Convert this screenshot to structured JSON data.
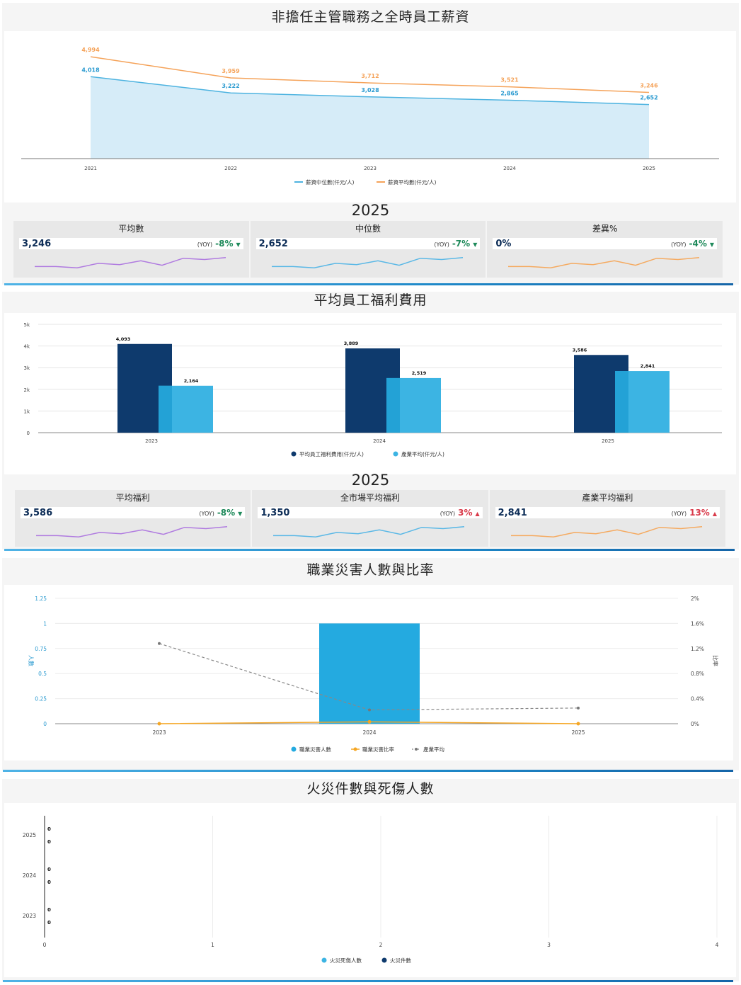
{
  "colors": {
    "median_line": "#4db3e0",
    "mean_line": "#f5a35a",
    "avg_welfare_bar": "#0e3a6d",
    "industry_bar": "#3cb4e3",
    "accident_bar": "#24aae0",
    "accident_rate": "#f5a623",
    "industry_avg": "#888888",
    "spark_purple": "#b07be0",
    "spark_blue": "#5ab8e6",
    "spark_orange": "#f5aa60",
    "yoy_down": "#1f8a5b",
    "yoy_up": "#d93a4a"
  },
  "salary": {
    "title": "非擔任主管職務之全時員工薪資",
    "year_heading": "2025",
    "kpis": [
      {
        "title": "平均數",
        "value": "3,246",
        "yoy_tag": "(YOY)",
        "yoy": "-8%",
        "dir": "down",
        "arrow": "▼",
        "spark_color": "purple"
      },
      {
        "title": "中位數",
        "value": "2,652",
        "yoy_tag": "(YOY)",
        "yoy": "-7%",
        "dir": "down",
        "arrow": "▼",
        "spark_color": "blue"
      },
      {
        "title": "差異%",
        "value": "0%",
        "yoy_tag": "(YOY)",
        "yoy": "-4%",
        "dir": "down",
        "arrow": "▼",
        "spark_color": "orange"
      }
    ]
  },
  "welfare": {
    "title": "平均員工福利費用",
    "year_heading": "2025",
    "kpis": [
      {
        "title": "平均福利",
        "value": "3,586",
        "yoy_tag": "(YOY)",
        "yoy": "-8%",
        "dir": "down",
        "arrow": "▼",
        "spark_color": "purple"
      },
      {
        "title": "全市場平均福利",
        "value": "1,350",
        "yoy_tag": "(YOY)",
        "yoy": "3%",
        "dir": "up",
        "arrow": "▲",
        "spark_color": "blue"
      },
      {
        "title": "產業平均福利",
        "value": "2,841",
        "yoy_tag": "(YOY)",
        "yoy": "13%",
        "dir": "up",
        "arrow": "▲",
        "spark_color": "orange"
      }
    ]
  },
  "accident": {
    "title": "職業災害人數與比率"
  },
  "fire": {
    "title": "火災件數與死傷人數"
  },
  "chart_data": [
    {
      "type": "area",
      "title": "非擔任主管職務之全時員工薪資",
      "categories": [
        "2021",
        "2022",
        "2023",
        "2024",
        "2025"
      ],
      "series": [
        {
          "name": "薪資中位數(仟元/人)",
          "values": [
            4018,
            3222,
            3028,
            2865,
            2652
          ],
          "labels": [
            "4,018",
            "3,222",
            "3,028",
            "2,865",
            "2,652"
          ]
        },
        {
          "name": "薪資平均數(仟元/人)",
          "values": [
            4994,
            3959,
            3712,
            3521,
            3246
          ],
          "labels": [
            "4,994",
            "3,959",
            "3,712",
            "3,521",
            "3,246"
          ]
        }
      ],
      "ylim": [
        0,
        6000
      ],
      "grid": false,
      "legend": "bottom"
    },
    {
      "type": "bar",
      "title": "平均員工福利費用",
      "categories": [
        "2023",
        "2024",
        "2025"
      ],
      "series": [
        {
          "name": "平均員工福利費用(仟元/人)",
          "values": [
            4093,
            3889,
            3586
          ],
          "labels": [
            "4,093",
            "3,889",
            "3,586"
          ]
        },
        {
          "name": "產業平均(仟元/人)",
          "values": [
            2164,
            2519,
            2841
          ],
          "labels": [
            "2,164",
            "2,519",
            "2,841"
          ]
        }
      ],
      "yticks": [
        "0",
        "1k",
        "2k",
        "3k",
        "4k",
        "5k"
      ],
      "ylim": [
        0,
        5000
      ],
      "grid": true,
      "legend": "bottom"
    },
    {
      "type": "bar",
      "title": "職業災害人數與比率",
      "categories": [
        "2023",
        "2024",
        "2025"
      ],
      "ylabel": "人數",
      "y2label": "比率",
      "ylim": [
        0,
        1.25
      ],
      "y2lim": [
        0,
        2
      ],
      "yticks": [
        "0",
        "0.25",
        "0.5",
        "0.75",
        "1",
        "1.25"
      ],
      "y2ticks": [
        "0%",
        "0.4%",
        "0.8%",
        "1.2%",
        "1.6%",
        "2%"
      ],
      "series": [
        {
          "name": "職業災害人數",
          "type": "bar",
          "axis": "left",
          "values": [
            0,
            1,
            0
          ]
        },
        {
          "name": "職業災害比率",
          "type": "line",
          "axis": "right",
          "values": [
            0,
            0.03,
            0
          ]
        },
        {
          "name": "產業平均",
          "type": "line",
          "axis": "right",
          "values": [
            1.28,
            0.22,
            0.25
          ]
        }
      ],
      "grid": true,
      "legend": "bottom"
    },
    {
      "type": "bar",
      "orientation": "horizontal",
      "title": "火災件數與死傷人數",
      "categories": [
        "2025",
        "2024",
        "2023"
      ],
      "series": [
        {
          "name": "火災死傷人數",
          "values": [
            0,
            0,
            0
          ]
        },
        {
          "name": "火災件數",
          "values": [
            0,
            0,
            0
          ]
        }
      ],
      "xlim": [
        0,
        4
      ],
      "xticks": [
        "0",
        "1",
        "2",
        "3",
        "4"
      ],
      "grid": true,
      "legend": "bottom"
    }
  ]
}
